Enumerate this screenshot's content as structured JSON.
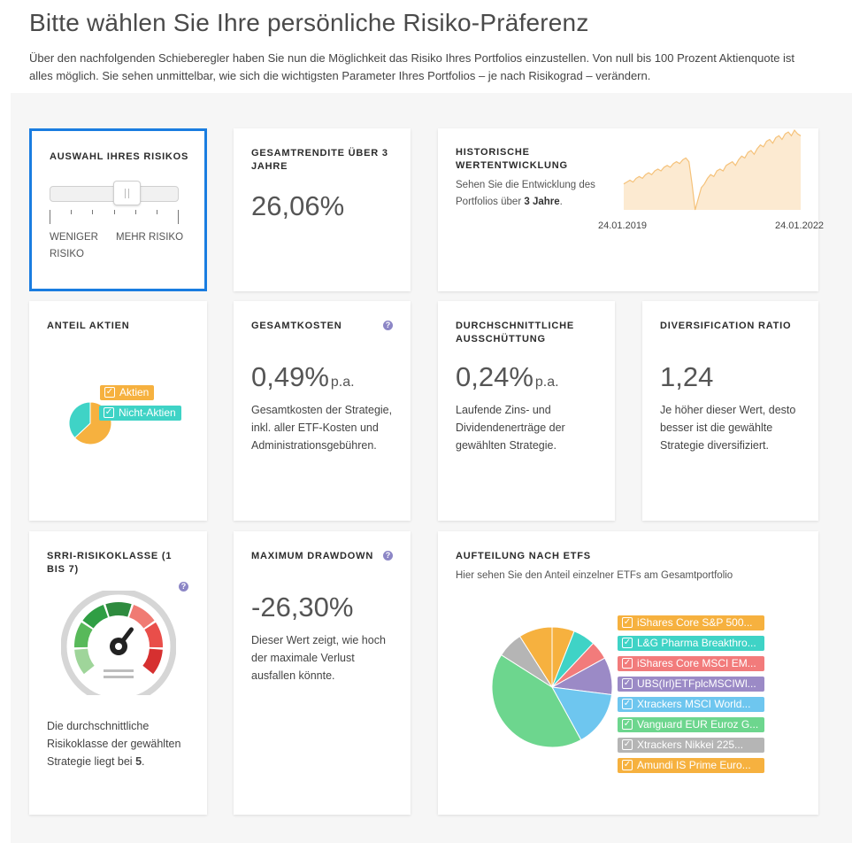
{
  "page": {
    "title": "Bitte wählen Sie Ihre persönliche Risiko-Präferenz",
    "intro": "Über den nachfolgenden Schieberegler haben Sie nun die Möglichkeit das Risiko Ihres Portfolios einzustellen. Von null bis 100 Prozent Aktienquote ist alles möglich. Sie sehen unmittelbar, wie sich die wichtigsten Parameter Ihres Portfolios – je nach Risikograd – verändern."
  },
  "risk_selector": {
    "title": "Auswahl Ihres Risikos",
    "less_label": "WENIGER RISIKO",
    "more_label": "MEHR RISIKO",
    "slider_value_fraction": 0.63
  },
  "total_return": {
    "title": "Gesamtrendite über 3 Jahre",
    "value": "26,06%"
  },
  "history": {
    "title": "Historische Wertentwicklung",
    "desc_prefix": "Sehen Sie die Entwicklung des Portfolios über ",
    "desc_bold": "3 Jahre",
    "desc_suffix": ".",
    "start_date": "24.01.2019",
    "end_date": "24.01.2022",
    "color": "#f5c27a"
  },
  "equity_share": {
    "title": "Anteil Aktien",
    "legend": [
      {
        "label": "Aktien",
        "color": "#f6b13f"
      },
      {
        "label": "Nicht-Aktien",
        "color": "#3fd3c6"
      }
    ],
    "slices": [
      {
        "label": "Aktien",
        "value": 63,
        "color": "#f6b13f"
      },
      {
        "label": "Nicht-Aktien",
        "value": 37,
        "color": "#3fd3c6"
      }
    ]
  },
  "total_costs": {
    "title": "Gesamtkosten",
    "value": "0,49%",
    "unit": "p.a.",
    "desc": "Gesamtkosten der Strategie, inkl. aller ETF-Kosten und Administrationsgebühren."
  },
  "distribution": {
    "title": "Durchschnittliche Ausschüttung",
    "value": "0,24%",
    "unit": "p.a.",
    "desc": "Laufende Zins- und Dividendenerträge der gewählten Strategie."
  },
  "diversification": {
    "title": "Diversification Ratio",
    "value": "1,24",
    "desc": "Je höher dieser Wert, desto besser ist die gewählte Strategie diversifiziert."
  },
  "srri": {
    "title": "SRRI-Risikoklasse (1 bis 7)",
    "desc_prefix": "Die durchschnittliche Risikoklasse der gewählten Strategie liegt bei ",
    "value": "5",
    "desc_suffix": ".",
    "segment_colors": [
      "#9fd59a",
      "#58b95a",
      "#2f9e44",
      "#2e8b3e",
      "#f07b73",
      "#e94e4a",
      "#d63030"
    ]
  },
  "max_drawdown": {
    "title": "Maximum Drawdown",
    "value": "-26,30%",
    "desc": "Dieser Wert zeigt, wie hoch der maximale Verlust ausfallen könnte."
  },
  "etf_split": {
    "title": "Aufteilung nach ETFs",
    "subtitle": "Hier sehen Sie den Anteil einzelner ETFs am Gesamtportfolio",
    "items": [
      {
        "label": "iShares Core S&P 500...",
        "color": "#f6b13f"
      },
      {
        "label": "L&G Pharma Breakthro...",
        "color": "#3fd3c6"
      },
      {
        "label": "iShares Core MSCI EM...",
        "color": "#f27b7b"
      },
      {
        "label": "UBS(Irl)ETFplcMSCIWl...",
        "color": "#9b8ac6"
      },
      {
        "label": "Xtrackers MSCI World...",
        "color": "#6ec6ef"
      },
      {
        "label": "Vanguard EUR Euroz G...",
        "color": "#6dd68e"
      },
      {
        "label": "Xtrackers Nikkei 225...",
        "color": "#b5b5b5"
      },
      {
        "label": "Amundi IS Prime Euro...",
        "color": "#f6b13f"
      }
    ]
  },
  "chart_data": [
    {
      "type": "line",
      "title": "Historische Wertentwicklung",
      "x_start": "24.01.2019",
      "x_end": "24.01.2022",
      "y": [
        100,
        101,
        102,
        101,
        103,
        104,
        103,
        105,
        106,
        105,
        107,
        108,
        107,
        109,
        110,
        109,
        111,
        112,
        111,
        113,
        114,
        112,
        100,
        86,
        92,
        98,
        100,
        103,
        105,
        104,
        107,
        108,
        107,
        110,
        111,
        112,
        110,
        113,
        115,
        114,
        117,
        118,
        116,
        119,
        121,
        120,
        123,
        124,
        122,
        125,
        126,
        124,
        127,
        128,
        126,
        129,
        127,
        126
      ]
    },
    {
      "type": "pie",
      "title": "Anteil Aktien",
      "labels": [
        "Aktien",
        "Nicht-Aktien"
      ],
      "values": [
        63,
        37
      ]
    },
    {
      "type": "pie",
      "title": "Aufteilung nach ETFs",
      "labels": [
        "iShares Core S&P 500...",
        "L&G Pharma Breakthro...",
        "iShares Core MSCI EM...",
        "UBS(Irl)ETFplcMSCIWl...",
        "Xtrackers MSCI World...",
        "Vanguard EUR Euroz G...",
        "Xtrackers Nikkei 225...",
        "Amundi IS Prime Euro..."
      ],
      "values": [
        6,
        6,
        5,
        10,
        15,
        42,
        7,
        9
      ]
    }
  ]
}
